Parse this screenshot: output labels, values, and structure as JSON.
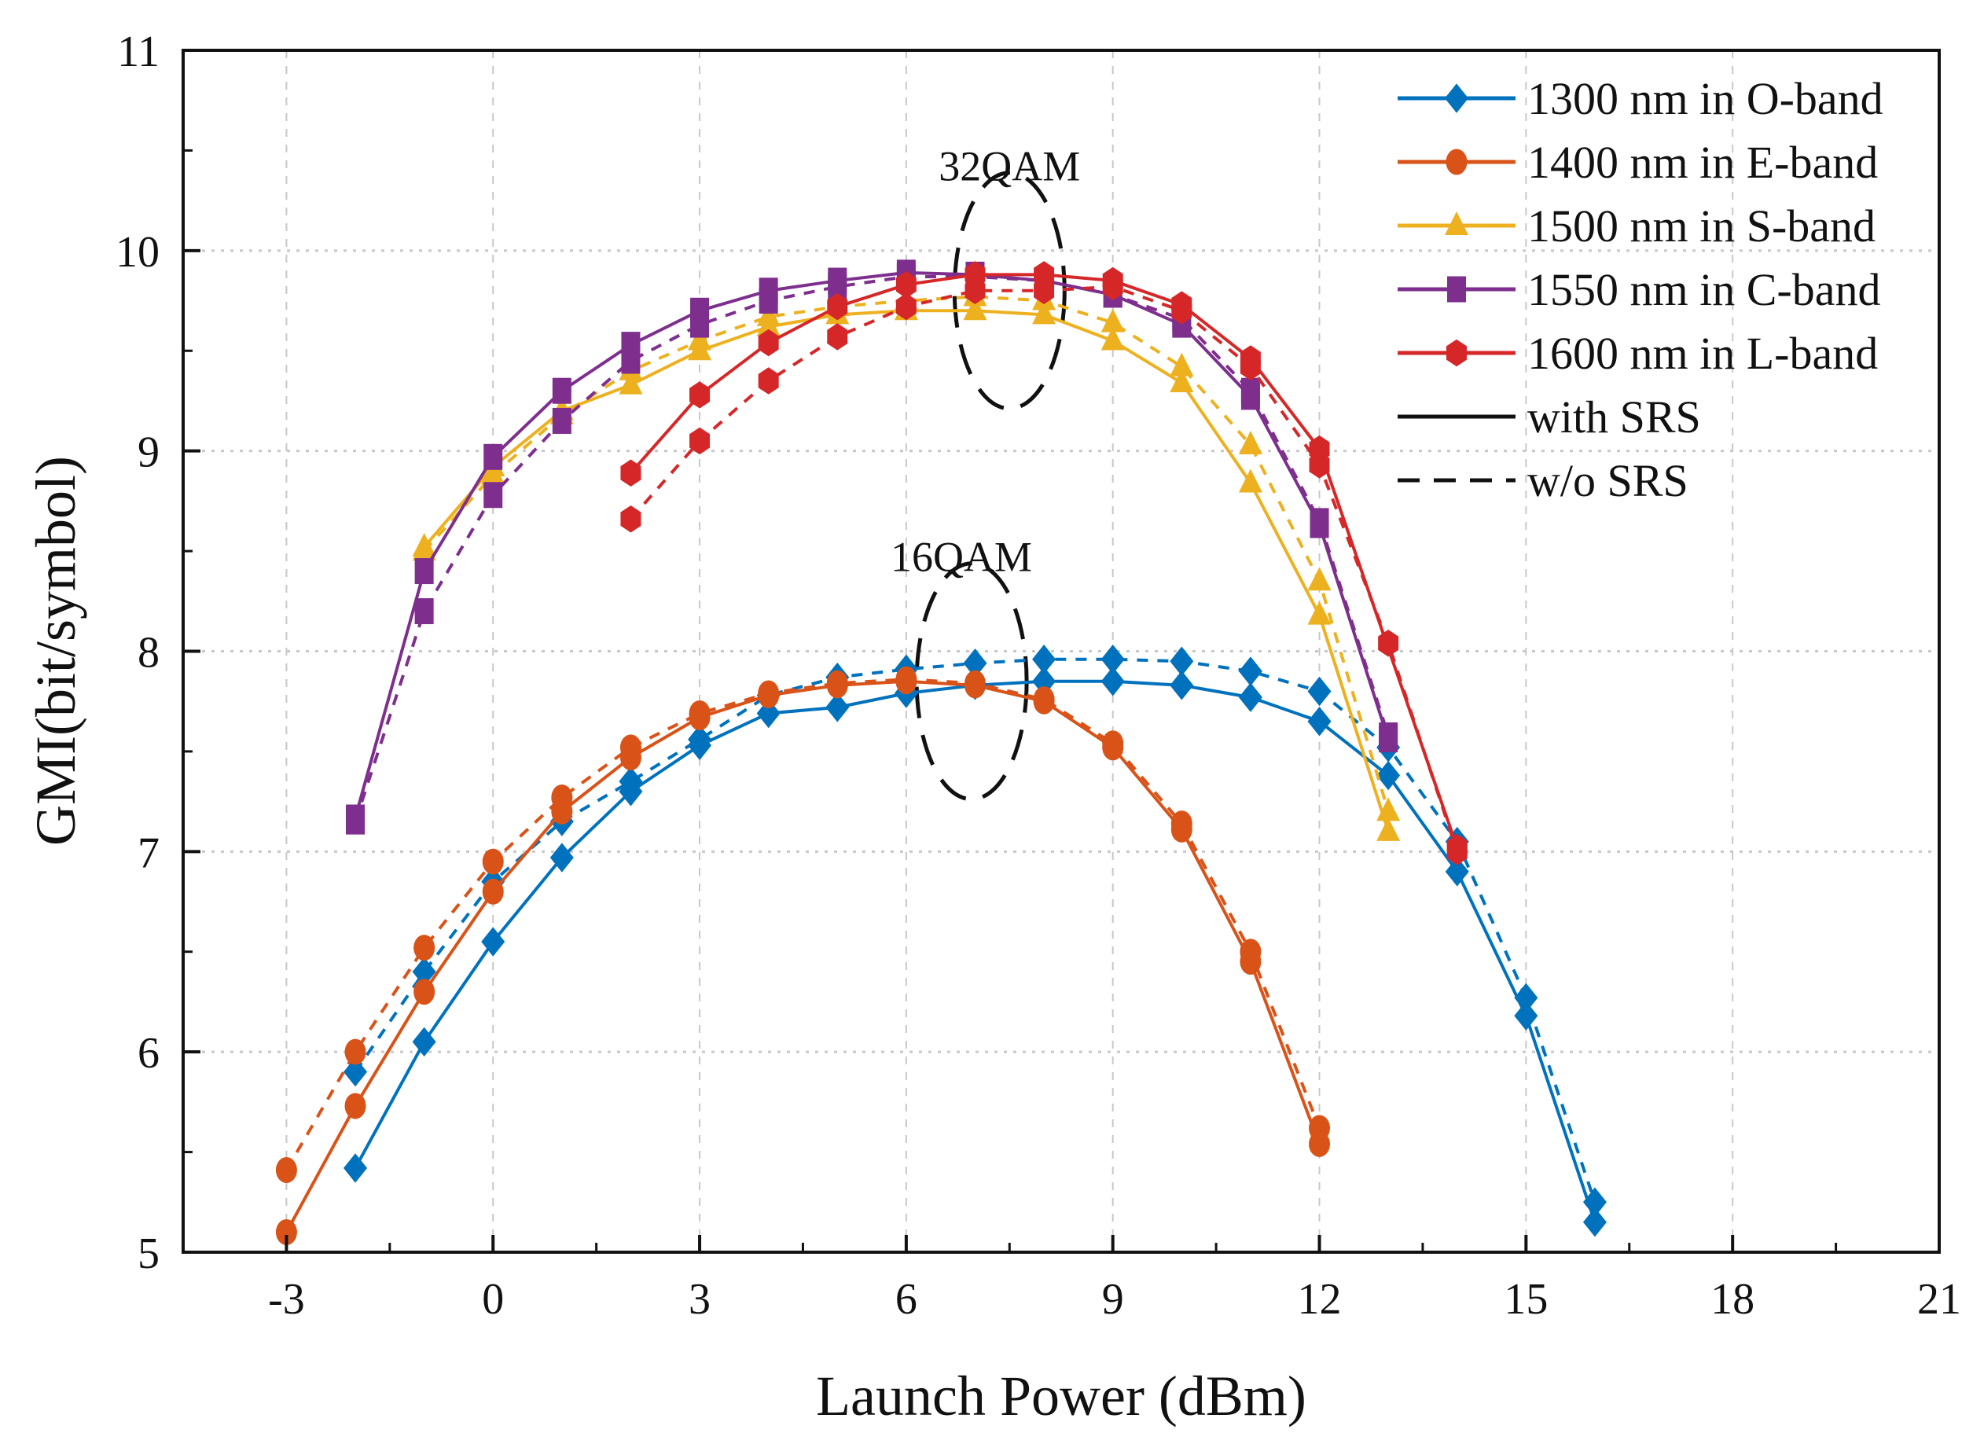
{
  "chart_data": {
    "type": "line",
    "title": "",
    "xlabel": "Launch Power (dBm)",
    "ylabel": "GMI(bit/symbol)",
    "xlim": [
      -4.5,
      21
    ],
    "ylim": [
      5,
      11
    ],
    "xticks": [
      -3,
      0,
      3,
      6,
      9,
      12,
      15,
      18,
      21
    ],
    "yticks": [
      5,
      6,
      7,
      8,
      9,
      10,
      11
    ],
    "grid": true,
    "legend_position": "top-right",
    "annotations": [
      {
        "text": "32QAM",
        "x": 7.5,
        "y": 10.35
      },
      {
        "text": "16QAM",
        "x": 6.8,
        "y": 8.4
      }
    ],
    "legend_styles": [
      {
        "label": "with SRS",
        "dash": "solid"
      },
      {
        "label": "w/o  SRS",
        "dash": "dashed"
      }
    ],
    "series": [
      {
        "name": "1300 nm in O-band",
        "color": "#0072BD",
        "marker": "diamond",
        "with_srs": {
          "x": [
            -2,
            -1,
            0,
            1,
            2,
            3,
            4,
            5,
            6,
            7,
            8,
            9,
            10,
            11,
            12,
            13,
            14,
            15,
            16
          ],
          "y": [
            5.42,
            6.05,
            6.55,
            6.97,
            7.3,
            7.53,
            7.69,
            7.72,
            7.79,
            7.83,
            7.85,
            7.85,
            7.83,
            7.77,
            7.65,
            7.38,
            6.9,
            6.18,
            5.15
          ]
        },
        "without_srs": {
          "x": [
            -2,
            -1,
            0,
            1,
            2,
            3,
            4,
            5,
            6,
            7,
            8,
            9,
            10,
            11,
            12,
            13,
            14,
            15,
            16
          ],
          "y": [
            5.9,
            6.4,
            6.85,
            7.15,
            7.35,
            7.56,
            7.78,
            7.87,
            7.91,
            7.94,
            7.96,
            7.96,
            7.95,
            7.9,
            7.8,
            7.52,
            7.05,
            6.27,
            5.25
          ]
        }
      },
      {
        "name": "1400 nm in E-band",
        "color": "#D95319",
        "marker": "circle",
        "with_srs": {
          "x": [
            -3,
            -2,
            -1,
            0,
            1,
            2,
            3,
            4,
            5,
            6,
            7,
            8,
            9,
            10,
            11,
            12
          ],
          "y": [
            5.1,
            5.73,
            6.3,
            6.8,
            7.2,
            7.47,
            7.67,
            7.78,
            7.83,
            7.85,
            7.83,
            7.75,
            7.52,
            7.11,
            6.45,
            5.54
          ]
        },
        "without_srs": {
          "x": [
            -3,
            -2,
            -1,
            0,
            1,
            2,
            3,
            4,
            5,
            6,
            7,
            8,
            9,
            10,
            11,
            12
          ],
          "y": [
            5.41,
            6.0,
            6.52,
            6.95,
            7.27,
            7.52,
            7.69,
            7.79,
            7.84,
            7.86,
            7.84,
            7.76,
            7.54,
            7.14,
            6.5,
            5.62
          ]
        }
      },
      {
        "name": "1500 nm in S-band",
        "color": "#EDB120",
        "marker": "triangle",
        "with_srs": {
          "x": [
            -1,
            0,
            1,
            2,
            3,
            4,
            5,
            6,
            7,
            8,
            9,
            10,
            11,
            12,
            13
          ],
          "y": [
            8.52,
            8.92,
            9.2,
            9.33,
            9.5,
            9.62,
            9.68,
            9.7,
            9.7,
            9.68,
            9.55,
            9.34,
            8.84,
            8.18,
            7.1
          ]
        },
        "without_srs": {
          "x": [
            -1,
            0,
            1,
            2,
            3,
            4,
            5,
            6,
            7,
            8,
            9,
            10,
            11,
            12,
            13
          ],
          "y": [
            8.5,
            8.88,
            9.18,
            9.4,
            9.55,
            9.67,
            9.72,
            9.75,
            9.77,
            9.75,
            9.64,
            9.42,
            9.03,
            8.35,
            7.2
          ]
        }
      },
      {
        "name": "1550 nm in C-band",
        "color": "#7E2F8E",
        "marker": "square",
        "with_srs": {
          "x": [
            -2,
            -1,
            0,
            1,
            2,
            3,
            4,
            5,
            6,
            7,
            8,
            9,
            10,
            11,
            12,
            13
          ],
          "y": [
            7.17,
            8.4,
            8.97,
            9.3,
            9.53,
            9.7,
            9.8,
            9.85,
            9.89,
            9.88,
            9.85,
            9.78,
            9.63,
            9.27,
            8.63,
            7.56
          ]
        },
        "without_srs": {
          "x": [
            -2,
            -1,
            0,
            1,
            2,
            3,
            4,
            5,
            6,
            7,
            8,
            9,
            10,
            11,
            12,
            13
          ],
          "y": [
            7.15,
            8.2,
            8.78,
            9.15,
            9.45,
            9.63,
            9.75,
            9.82,
            9.87,
            9.87,
            9.85,
            9.78,
            9.66,
            9.3,
            8.65,
            7.58
          ]
        }
      },
      {
        "name": "1600 nm in L-band",
        "color": "#D62728",
        "marker": "hexagon",
        "with_srs": {
          "x": [
            2,
            3,
            4,
            5,
            6,
            7,
            8,
            9,
            10,
            11,
            12,
            14
          ],
          "y": [
            8.89,
            9.28,
            9.54,
            9.72,
            9.83,
            9.88,
            9.88,
            9.85,
            9.73,
            9.46,
            9.01,
            7.02
          ]
        },
        "without_srs": {
          "x": [
            2,
            3,
            4,
            5,
            6,
            7,
            8,
            9,
            10,
            11,
            12,
            13,
            14
          ],
          "y": [
            8.66,
            9.05,
            9.35,
            9.57,
            9.72,
            9.8,
            9.8,
            9.82,
            9.7,
            9.42,
            8.93,
            8.04,
            7.0
          ]
        }
      }
    ]
  }
}
